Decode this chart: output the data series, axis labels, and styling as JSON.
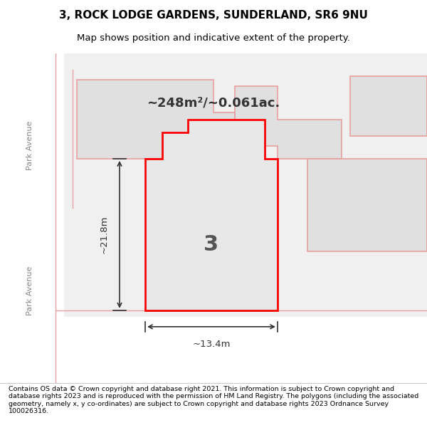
{
  "title_line1": "3, ROCK LODGE GARDENS, SUNDERLAND, SR6 9NU",
  "title_line2": "Map shows position and indicative extent of the property.",
  "area_text": "~248m²/~0.061ac.",
  "plot_number": "3",
  "dim_width": "~13.4m",
  "dim_height": "~21.8m",
  "road_label_top": "Park Avenue",
  "road_label_bottom": "Park Avenue",
  "footer_text": "Contains OS data © Crown copyright and database right 2021. This information is subject to Crown copyright and database rights 2023 and is reproduced with the permission of HM Land Registry. The polygons (including the associated geometry, namely x, y co-ordinates) are subject to Crown copyright and database rights 2023 Ordnance Survey 100026316.",
  "bg_color": "#ffffff",
  "map_bg": "#f5f5f5",
  "plot_fill": "#e8e8e8",
  "plot_border": "#ff0000",
  "neighbor_fill": "#e0e0e0",
  "neighbor_border": "#e8a0a0",
  "road_color": "#ffffff",
  "road_border": "#e0c0c0"
}
